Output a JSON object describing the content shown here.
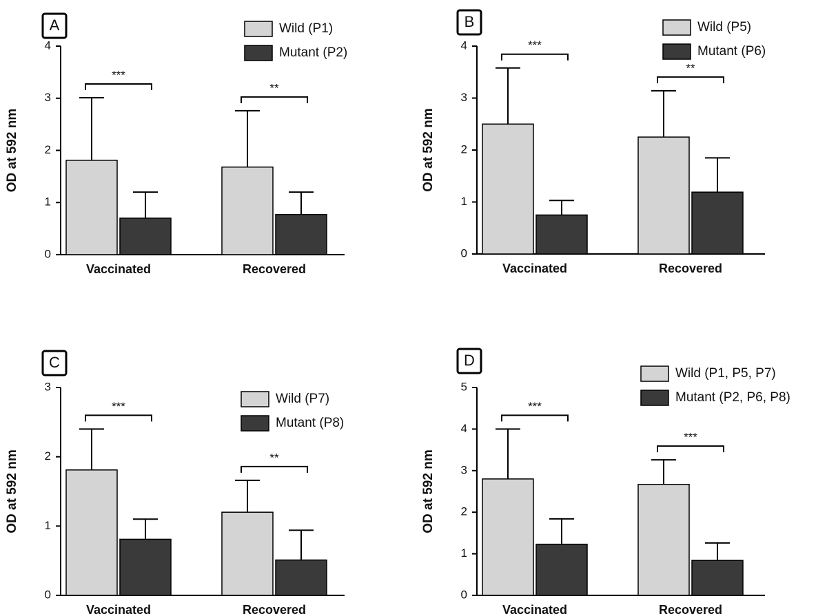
{
  "chart_data": [
    {
      "type": "bar",
      "panel": "A",
      "ylabel": "OD at 592 nm",
      "categories": [
        "Vaccinated",
        "Recovered"
      ],
      "series": [
        {
          "name": "Wild (P1)",
          "color": "#d4d4d4",
          "values": [
            1.81,
            1.68
          ],
          "errors": [
            1.2,
            1.08
          ]
        },
        {
          "name": "Mutant (P2)",
          "color": "#3a3a3a",
          "values": [
            0.7,
            0.77
          ],
          "errors": [
            0.5,
            0.43
          ]
        }
      ],
      "annotations": [
        "***",
        "**"
      ],
      "ylim": [
        0,
        4
      ],
      "yticks": [
        0,
        1,
        2,
        3,
        4
      ]
    },
    {
      "type": "bar",
      "panel": "B",
      "ylabel": "OD at 592 nm",
      "categories": [
        "Vaccinated",
        "Recovered"
      ],
      "series": [
        {
          "name": "Wild (P5)",
          "color": "#d4d4d4",
          "values": [
            2.5,
            2.25
          ],
          "errors": [
            1.08,
            0.89
          ]
        },
        {
          "name": "Mutant (P6)",
          "color": "#3a3a3a",
          "values": [
            0.75,
            1.19
          ],
          "errors": [
            0.28,
            0.66
          ]
        }
      ],
      "annotations": [
        "***",
        "**"
      ],
      "ylim": [
        0,
        4
      ],
      "yticks": [
        0,
        1,
        2,
        3,
        4
      ]
    },
    {
      "type": "bar",
      "panel": "C",
      "ylabel": "OD at 592 nm",
      "categories": [
        "Vaccinated",
        "Recovered"
      ],
      "series": [
        {
          "name": "Wild (P7)",
          "color": "#d4d4d4",
          "values": [
            1.81,
            1.2
          ],
          "errors": [
            0.59,
            0.46
          ]
        },
        {
          "name": "Mutant (P8)",
          "color": "#3a3a3a",
          "values": [
            0.81,
            0.51
          ],
          "errors": [
            0.29,
            0.43
          ]
        }
      ],
      "annotations": [
        "***",
        "**"
      ],
      "ylim": [
        0,
        3
      ],
      "yticks": [
        0,
        1,
        2,
        3
      ]
    },
    {
      "type": "bar",
      "panel": "D",
      "ylabel": "OD at 592 nm",
      "categories": [
        "Vaccinated",
        "Recovered"
      ],
      "series": [
        {
          "name": "Wild (P1, P5, P7)",
          "color": "#d4d4d4",
          "values": [
            2.8,
            2.67
          ],
          "errors": [
            1.2,
            0.59
          ]
        },
        {
          "name": "Mutant (P2, P6, P8)",
          "color": "#3a3a3a",
          "values": [
            1.23,
            0.84
          ],
          "errors": [
            0.61,
            0.42
          ]
        }
      ],
      "annotations": [
        "***",
        "***"
      ],
      "ylim": [
        0,
        5
      ],
      "yticks": [
        0,
        1,
        2,
        3,
        4,
        5
      ]
    }
  ]
}
